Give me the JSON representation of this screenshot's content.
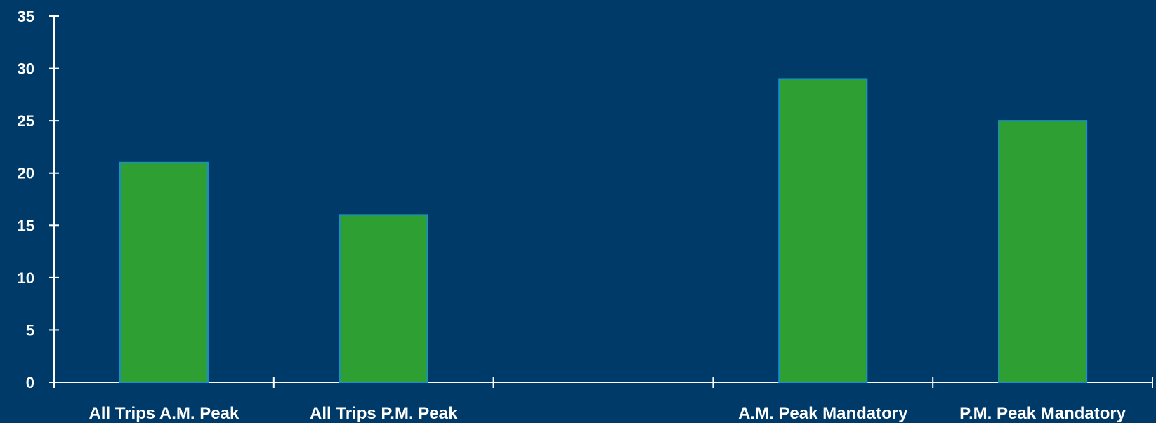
{
  "colors": {
    "background": "#003a68",
    "bar_fill": "#2e9f33",
    "bar_stroke": "#1a8fd0",
    "axis": "#ffffff",
    "text": "#ffffff"
  },
  "chart_data": {
    "type": "bar",
    "categories": [
      "All Trips A.M. Peak",
      "All Trips P.M. Peak",
      "",
      "A.M. Peak Mandatory",
      "P.M. Peak Mandatory"
    ],
    "values": [
      21,
      16,
      null,
      29,
      25
    ],
    "title": "",
    "xlabel": "",
    "ylabel": "",
    "ylim": [
      0,
      35
    ],
    "yticks": [
      "0",
      "5",
      "10",
      "15",
      "20",
      "25",
      "30",
      "35"
    ],
    "grid": false,
    "legend": "none"
  }
}
